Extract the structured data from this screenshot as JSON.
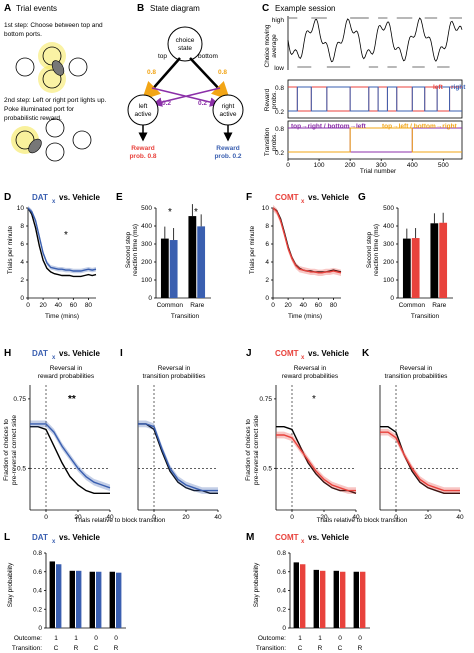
{
  "panels": {
    "A": {
      "letter": "A",
      "title": "Trial events",
      "step1": [
        "1st step: Choose between top and",
        "bottom ports."
      ],
      "step2": [
        "2nd step: Left or right port lights up.",
        "Poke illuminated port for",
        "probabilistic reward."
      ]
    },
    "B": {
      "letter": "B",
      "title": "State diagram",
      "choice": [
        "choice",
        "state"
      ],
      "top": "top",
      "bottom": "bottom",
      "p_common": "0.8",
      "p_rare": "0.2",
      "left": [
        "left",
        "active"
      ],
      "right": [
        "right",
        "active"
      ],
      "reward_left": [
        "Reward",
        "prob. 0.8"
      ],
      "reward_right": [
        "Reward",
        "prob. 0.2"
      ]
    },
    "C": {
      "letter": "C",
      "title": "Example session",
      "y1label": [
        "Choice moving",
        "average"
      ],
      "y1ticks": [
        "high",
        "low"
      ],
      "y2label": [
        "Reward",
        "probs."
      ],
      "y2ticks": [
        "0.8",
        "0.2"
      ],
      "legend2": [
        "left",
        "right"
      ],
      "y3label": [
        "Transition",
        "probs."
      ],
      "y3ticks": [
        "0.8",
        "0.2"
      ],
      "legend3a": "top→right / bottom→left",
      "legend3b": "top→left / bottom→right",
      "xlabel": "Trial number",
      "xticks": [
        "0",
        "100",
        "200",
        "300",
        "400",
        "500"
      ]
    },
    "D": {
      "letter": "D",
      "title": "vs. Vehicle",
      "drug": "DAT",
      "sub": "x",
      "ylabel": "Trials per minute",
      "xlabel": "Time (mins)",
      "star": "*"
    },
    "E": {
      "letter": "E",
      "ylabel": [
        "Second step",
        "reaction time (ms)"
      ],
      "cats": [
        "Common",
        "Rare"
      ],
      "xlabel": "Transition",
      "stars": [
        "*",
        "*"
      ]
    },
    "F": {
      "letter": "F",
      "title": "vs. Vehicle",
      "drug": "COMT",
      "sub": "x",
      "ylabel": "Trials per minute",
      "xlabel": "Time (mins)"
    },
    "G": {
      "letter": "G",
      "ylabel": [
        "Second step",
        "reaction time (ms)"
      ],
      "cats": [
        "Common",
        "Rare"
      ],
      "xlabel": "Transition"
    },
    "H": {
      "letter": "H",
      "title": "vs. Vehicle",
      "drug": "DAT",
      "sub": "x",
      "subtitle": [
        "Reversal in",
        "reward probabilities"
      ],
      "star": "**"
    },
    "I": {
      "letter": "I",
      "subtitle": [
        "Reversal in",
        "transition probabilities"
      ]
    },
    "J": {
      "letter": "J",
      "title": "vs. Vehicle",
      "drug": "COMT",
      "sub": "x",
      "subtitle": [
        "Reversal in",
        "reward probabilities"
      ],
      "star": "*"
    },
    "K": {
      "letter": "K",
      "subtitle": [
        "Reversal in",
        "transition probabilities"
      ]
    },
    "HI": {
      "ylabel": [
        "Fraction of choices to",
        "pre-reversal correct side"
      ],
      "xlabel": "Trials relative to block transition"
    },
    "JK": {
      "ylabel": [
        "Fraction of choices to",
        "pre-reversal correct side"
      ],
      "xlabel": "Trials relative to block transition"
    },
    "L": {
      "letter": "L",
      "title": "vs. Vehicle",
      "drug": "DAT",
      "sub": "x",
      "ylabel": "Stay probability"
    },
    "M": {
      "letter": "M",
      "title": "vs. Vehicle",
      "drug": "COMT",
      "sub": "x",
      "ylabel": "Stay probability"
    },
    "stay_rows": {
      "outcome_label": "Outcome:",
      "transition_label": "Transition:",
      "outcome": [
        "1",
        "1",
        "0",
        "0"
      ],
      "transition": [
        "C",
        "R",
        "C",
        "R"
      ]
    }
  },
  "colors": {
    "vehicle": "#000000",
    "dat": "#3a5fb0",
    "comt": "#e8423c",
    "orange": "#f2a516",
    "purple": "#8b2fa8",
    "reward_red": "#e8423c",
    "reward_blue": "#3a5fb0"
  },
  "chart_data": [
    {
      "panel": "D",
      "type": "line",
      "x": [
        0,
        5,
        10,
        15,
        20,
        25,
        30,
        35,
        40,
        45,
        50,
        55,
        60,
        65,
        70,
        75,
        80,
        85,
        90
      ],
      "xlim": [
        0,
        90
      ],
      "ylim": [
        0,
        10
      ],
      "yticks": [
        0,
        2,
        4,
        6,
        8,
        10
      ],
      "xticks": [
        0,
        20,
        40,
        60,
        80
      ],
      "series": [
        {
          "name": "Vehicle",
          "values": [
            10,
            9.3,
            7.8,
            5.8,
            4.2,
            3.3,
            2.9,
            2.7,
            2.6,
            2.5,
            2.5,
            2.5,
            2.4,
            2.4,
            2.4,
            2.5,
            2.6,
            2.5,
            2.6
          ]
        },
        {
          "name": "DAT",
          "values": [
            10,
            9.6,
            8.6,
            6.8,
            5.0,
            3.9,
            3.4,
            3.3,
            3.2,
            3.2,
            3.1,
            3.1,
            3.0,
            3.0,
            3.0,
            3.1,
            3.2,
            3.1,
            3.2
          ]
        }
      ]
    },
    {
      "panel": "E",
      "type": "bar",
      "categories": [
        "Common",
        "Rare"
      ],
      "ylim": [
        0,
        500
      ],
      "yticks": [
        0,
        100,
        200,
        300,
        400,
        500
      ],
      "series": [
        {
          "name": "Vehicle",
          "values": [
            330,
            455
          ]
        },
        {
          "name": "DAT",
          "values": [
            322,
            398
          ]
        }
      ]
    },
    {
      "panel": "F",
      "type": "line",
      "x": [
        0,
        5,
        10,
        15,
        20,
        25,
        30,
        35,
        40,
        45,
        50,
        55,
        60,
        65,
        70,
        75,
        80,
        85,
        90
      ],
      "xlim": [
        0,
        90
      ],
      "ylim": [
        0,
        10
      ],
      "yticks": [
        0,
        2,
        4,
        6,
        8,
        10
      ],
      "xticks": [
        0,
        20,
        40,
        60,
        80
      ],
      "series": [
        {
          "name": "Vehicle",
          "values": [
            10,
            9.7,
            8.8,
            7.3,
            5.7,
            4.5,
            3.7,
            3.3,
            3.1,
            3.0,
            3.0,
            2.9,
            2.9,
            2.9,
            2.9,
            3.0,
            3.1,
            3.0,
            2.9
          ]
        },
        {
          "name": "COMT",
          "values": [
            10,
            9.6,
            8.6,
            7.1,
            5.5,
            4.4,
            3.6,
            3.2,
            3.1,
            3.0,
            2.9,
            2.9,
            2.8,
            2.8,
            2.9,
            2.9,
            3.0,
            2.9,
            2.8
          ]
        }
      ]
    },
    {
      "panel": "G",
      "type": "bar",
      "categories": [
        "Common",
        "Rare"
      ],
      "ylim": [
        0,
        500
      ],
      "yticks": [
        0,
        100,
        200,
        300,
        400,
        500
      ],
      "series": [
        {
          "name": "Vehicle",
          "values": [
            330,
            415
          ]
        },
        {
          "name": "COMT",
          "values": [
            333,
            418
          ]
        }
      ]
    },
    {
      "panel": "H",
      "type": "line",
      "xlim": [
        -10,
        40
      ],
      "ylim": [
        0.35,
        0.8
      ],
      "yticks": [
        0.5,
        0.75
      ],
      "xticks": [
        0,
        20,
        40
      ],
      "x": [
        -10,
        -5,
        0,
        5,
        10,
        15,
        20,
        25,
        30,
        35,
        40
      ],
      "series": [
        {
          "name": "Vehicle",
          "values": [
            0.65,
            0.65,
            0.64,
            0.58,
            0.52,
            0.47,
            0.44,
            0.42,
            0.41,
            0.41,
            0.41
          ]
        },
        {
          "name": "DAT",
          "values": [
            0.66,
            0.66,
            0.66,
            0.63,
            0.58,
            0.54,
            0.5,
            0.47,
            0.45,
            0.44,
            0.43
          ]
        }
      ]
    },
    {
      "panel": "I",
      "type": "line",
      "xlim": [
        -10,
        40
      ],
      "ylim": [
        0.35,
        0.8
      ],
      "xticks": [
        0,
        20,
        40
      ],
      "x": [
        -10,
        -5,
        0,
        5,
        10,
        15,
        20,
        25,
        30,
        35,
        40
      ],
      "series": [
        {
          "name": "Vehicle",
          "values": [
            0.66,
            0.66,
            0.64,
            0.56,
            0.49,
            0.45,
            0.43,
            0.42,
            0.42,
            0.41,
            0.41
          ]
        },
        {
          "name": "DAT",
          "values": [
            0.66,
            0.66,
            0.65,
            0.57,
            0.5,
            0.46,
            0.44,
            0.43,
            0.42,
            0.42,
            0.42
          ]
        }
      ]
    },
    {
      "panel": "J",
      "type": "line",
      "xlim": [
        -10,
        40
      ],
      "ylim": [
        0.35,
        0.8
      ],
      "yticks": [
        0.5,
        0.75
      ],
      "xticks": [
        0,
        20,
        40
      ],
      "x": [
        -10,
        -5,
        0,
        5,
        10,
        15,
        20,
        25,
        30,
        35,
        40
      ],
      "series": [
        {
          "name": "Vehicle",
          "values": [
            0.65,
            0.65,
            0.64,
            0.58,
            0.52,
            0.48,
            0.45,
            0.43,
            0.42,
            0.42,
            0.41
          ]
        },
        {
          "name": "COMT",
          "values": [
            0.62,
            0.62,
            0.61,
            0.57,
            0.53,
            0.49,
            0.46,
            0.44,
            0.43,
            0.42,
            0.42
          ]
        }
      ]
    },
    {
      "panel": "K",
      "type": "line",
      "xlim": [
        -10,
        40
      ],
      "ylim": [
        0.35,
        0.8
      ],
      "xticks": [
        0,
        20,
        40
      ],
      "x": [
        -10,
        -5,
        0,
        5,
        10,
        15,
        20,
        25,
        30,
        35,
        40
      ],
      "series": [
        {
          "name": "Vehicle",
          "values": [
            0.65,
            0.65,
            0.63,
            0.55,
            0.49,
            0.45,
            0.43,
            0.42,
            0.41,
            0.41,
            0.41
          ]
        },
        {
          "name": "COMT",
          "values": [
            0.63,
            0.63,
            0.61,
            0.55,
            0.5,
            0.46,
            0.44,
            0.43,
            0.42,
            0.42,
            0.42
          ]
        }
      ]
    },
    {
      "panel": "L",
      "type": "bar",
      "categories": [
        "1C",
        "1R",
        "0C",
        "0R"
      ],
      "ylim": [
        0,
        0.8
      ],
      "yticks": [
        0,
        0.2,
        0.4,
        0.6,
        0.8
      ],
      "series": [
        {
          "name": "Vehicle",
          "values": [
            0.71,
            0.61,
            0.6,
            0.6
          ]
        },
        {
          "name": "DAT",
          "values": [
            0.68,
            0.61,
            0.6,
            0.59
          ]
        }
      ]
    },
    {
      "panel": "M",
      "type": "bar",
      "categories": [
        "1C",
        "1R",
        "0C",
        "0R"
      ],
      "ylim": [
        0,
        0.8
      ],
      "yticks": [
        0,
        0.2,
        0.4,
        0.6,
        0.8
      ],
      "series": [
        {
          "name": "Vehicle",
          "values": [
            0.7,
            0.62,
            0.61,
            0.6
          ]
        },
        {
          "name": "COMT",
          "values": [
            0.68,
            0.61,
            0.6,
            0.6
          ]
        }
      ]
    },
    {
      "panel": "C",
      "type": "line",
      "xlim": [
        0,
        560
      ],
      "xticks": [
        0,
        100,
        200,
        300,
        400,
        500
      ],
      "reward_blocks": [
        {
          "start": 0,
          "end": 30,
          "left_high": true
        },
        {
          "start": 30,
          "end": 75,
          "left_high": false
        },
        {
          "start": 75,
          "end": 125,
          "left_high": true
        },
        {
          "start": 125,
          "end": 200,
          "left_high": false
        },
        {
          "start": 200,
          "end": 260,
          "left_high": true
        },
        {
          "start": 260,
          "end": 290,
          "left_high": false
        },
        {
          "start": 290,
          "end": 320,
          "left_high": true
        },
        {
          "start": 320,
          "end": 350,
          "left_high": false
        },
        {
          "start": 350,
          "end": 400,
          "left_high": true
        },
        {
          "start": 400,
          "end": 440,
          "left_high": false
        },
        {
          "start": 440,
          "end": 480,
          "left_high": true
        },
        {
          "start": 480,
          "end": 520,
          "left_high": false
        },
        {
          "start": 520,
          "end": 560,
          "left_high": true
        }
      ],
      "transition_blocks": [
        {
          "start": 0,
          "end": 200,
          "top_right": true
        },
        {
          "start": 200,
          "end": 400,
          "top_right": false
        },
        {
          "start": 400,
          "end": 560,
          "top_right": true
        }
      ]
    }
  ]
}
